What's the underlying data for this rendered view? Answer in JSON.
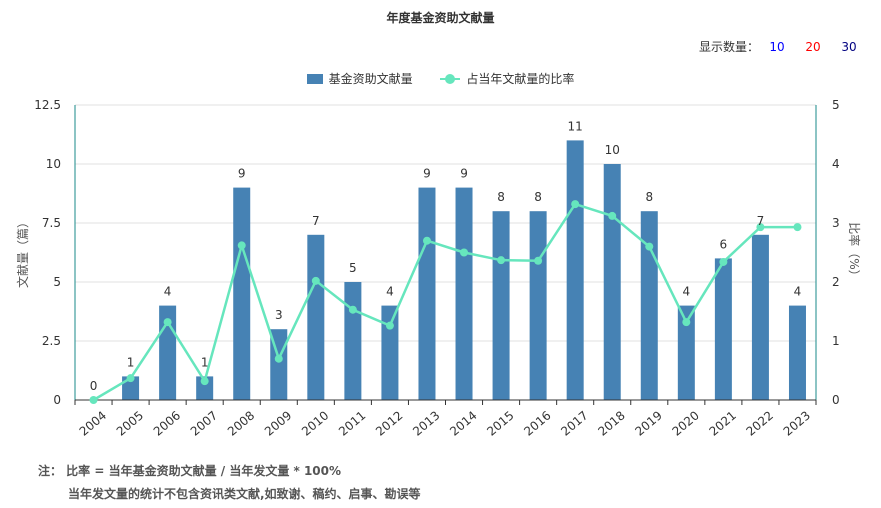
{
  "chart_data": {
    "type": "bar",
    "title": "年度基金资助文献量",
    "categories": [
      "2004",
      "2005",
      "2006",
      "2007",
      "2008",
      "2009",
      "2010",
      "2011",
      "2012",
      "2013",
      "2014",
      "2015",
      "2016",
      "2017",
      "2018",
      "2019",
      "2020",
      "2021",
      "2022",
      "2023"
    ],
    "series": [
      {
        "name": "基金资助文献量",
        "type": "bar",
        "axis": "left",
        "color": "#4682b4",
        "values": [
          0,
          1,
          4,
          1,
          9,
          3,
          7,
          5,
          4,
          9,
          9,
          8,
          8,
          11,
          10,
          8,
          4,
          6,
          7,
          4
        ]
      },
      {
        "name": "占当年文献量的比率",
        "type": "line",
        "axis": "right",
        "color": "#66e6bd",
        "values": [
          0,
          0.37,
          1.32,
          0.32,
          2.62,
          0.7,
          2.02,
          1.53,
          1.26,
          2.7,
          2.5,
          2.37,
          2.36,
          3.32,
          3.12,
          2.6,
          1.32,
          2.34,
          2.93,
          2.93
        ]
      }
    ],
    "ylabel": "文献量（篇）",
    "y2label": "比率（%）",
    "ylim": [
      0,
      12.5
    ],
    "yticks": [
      "0",
      "2.5",
      "5",
      "7.5",
      "10",
      "12.5"
    ],
    "y2lim": [
      0,
      5
    ],
    "y2ticks": [
      "0",
      "1",
      "2",
      "3",
      "4",
      "5"
    ],
    "grid": true,
    "legend": "top-center"
  },
  "display_control": {
    "label": "显示数量：",
    "options": [
      {
        "label": "10",
        "color": "#0000ff"
      },
      {
        "label": "20",
        "color": "#ff0000"
      },
      {
        "label": "30",
        "color": "#000080"
      }
    ]
  },
  "footnote": {
    "line1": "注： 比率 = 当年基金资助文献量 / 当年发文量 * 100%",
    "line2": "当年发文量的统计不包含资讯类文献,如致谢、稿约、启事、勘误等"
  }
}
